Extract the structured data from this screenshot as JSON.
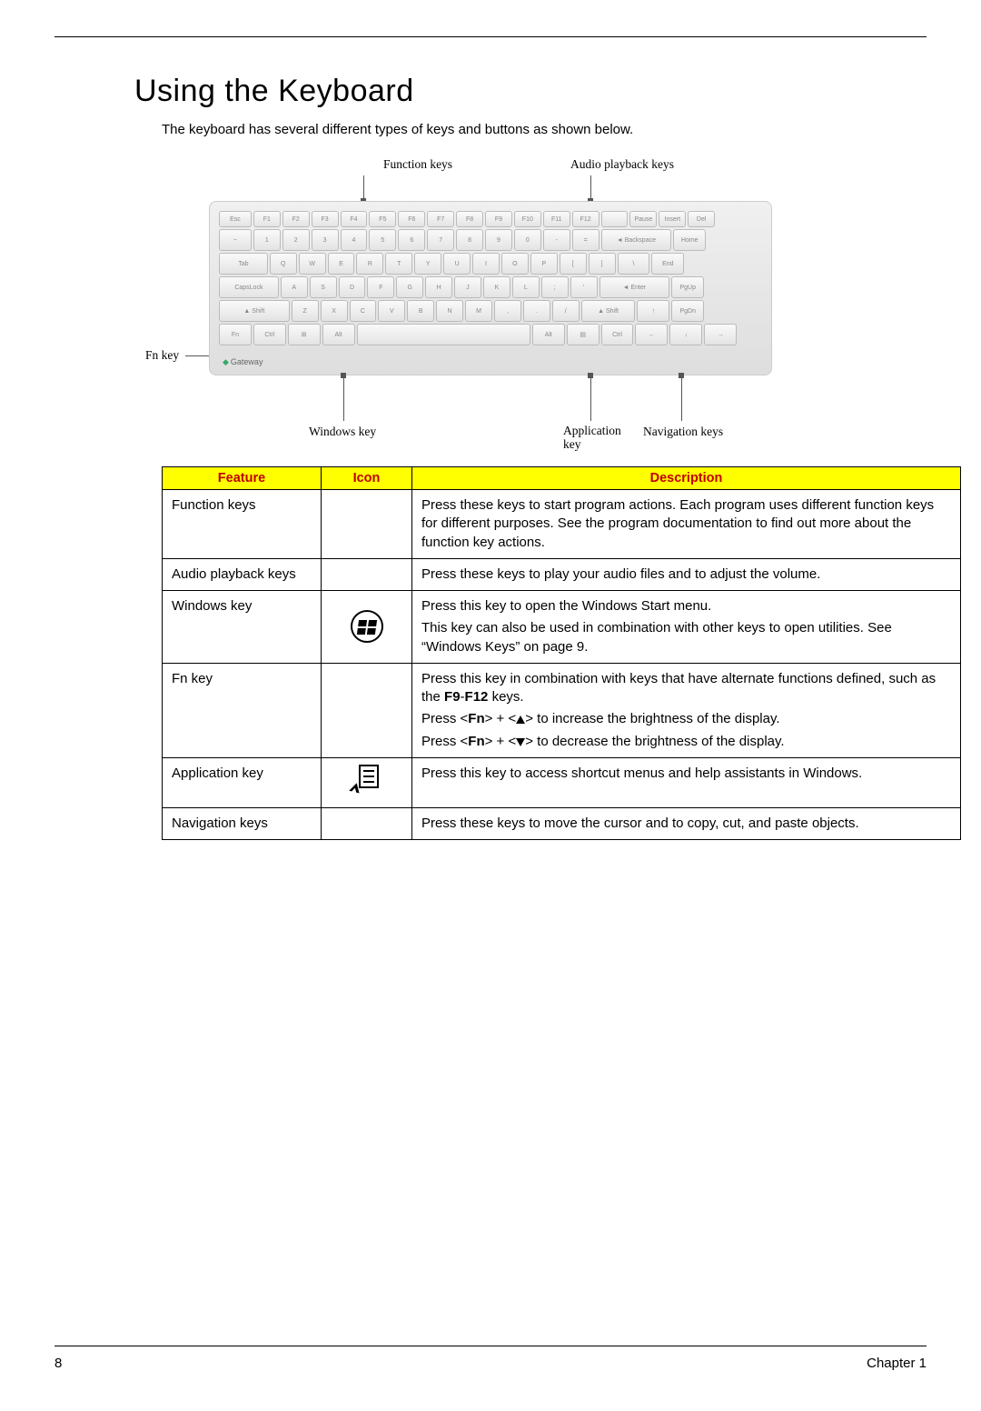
{
  "title": "Using the Keyboard",
  "intro": "The keyboard has several different types of keys and buttons as shown below.",
  "diagram": {
    "labels": {
      "function_keys": "Function keys",
      "audio_keys": "Audio playback keys",
      "fn_key": "Fn key",
      "windows_key": "Windows key",
      "application_key": "Application\nkey",
      "navigation_keys": "Navigation keys"
    },
    "brand": "Gateway",
    "rows": [
      [
        "Esc",
        "F1",
        "F2",
        "F3",
        "F4",
        "F5",
        "F6",
        "F7",
        "F8",
        "F9",
        "F10",
        "F11",
        "F12",
        "",
        "Pause",
        "Insert",
        "Del"
      ],
      [
        "~",
        "1",
        "2",
        "3",
        "4",
        "5",
        "6",
        "7",
        "8",
        "9",
        "0",
        "-",
        "=",
        "◄ Backspace",
        "Home"
      ],
      [
        "Tab",
        "Q",
        "W",
        "E",
        "R",
        "T",
        "Y",
        "U",
        "I",
        "O",
        "P",
        "[",
        "]",
        "\\",
        "End"
      ],
      [
        "CapsLock",
        "A",
        "S",
        "D",
        "F",
        "G",
        "H",
        "J",
        "K",
        "L",
        ";",
        "'",
        "◄ Enter",
        "PgUp"
      ],
      [
        "▲ Shift",
        "Z",
        "X",
        "C",
        "V",
        "B",
        "N",
        "M",
        ",",
        ".",
        "/",
        "▲ Shift",
        "↑",
        "PgDn"
      ],
      [
        "Fn",
        "Ctrl",
        "⊞",
        "Alt",
        " ",
        "Alt",
        "▤",
        "Ctrl",
        "←",
        "↓",
        "→"
      ]
    ],
    "widths_pct": [
      [
        6,
        5,
        5,
        5,
        5,
        5,
        5,
        5,
        5,
        5,
        5,
        5,
        5,
        5,
        5,
        5,
        5
      ],
      [
        6,
        5,
        5,
        5,
        5,
        5,
        5,
        5,
        5,
        5,
        5,
        5,
        5,
        13,
        6
      ],
      [
        9,
        5,
        5,
        5,
        5,
        5,
        5,
        5,
        5,
        5,
        5,
        5,
        5,
        6,
        6
      ],
      [
        11,
        5,
        5,
        5,
        5,
        5,
        5,
        5,
        5,
        5,
        5,
        5,
        13,
        6
      ],
      [
        13,
        5,
        5,
        5,
        5,
        5,
        5,
        5,
        5,
        5,
        5,
        10,
        6,
        6
      ],
      [
        6,
        6,
        6,
        6,
        32,
        6,
        6,
        6,
        6,
        6,
        6
      ]
    ]
  },
  "table": {
    "headers": [
      "Feature",
      "Icon",
      "Description"
    ],
    "rows": [
      {
        "feature": "Function keys",
        "icon": null,
        "desc_html": "Press these keys to start program actions. Each program uses different function keys for different purposes. See the program documentation to find out more about the function key actions."
      },
      {
        "feature": "Audio playback keys",
        "icon": null,
        "desc_html": "Press these keys to play your audio files and to adjust the volume."
      },
      {
        "feature": "Windows key",
        "icon": "windows",
        "desc_parts": [
          "Press this key to open the Windows Start menu.",
          "This key can also be used in combination with other keys to open utilities. See “Windows Keys” on page 9."
        ]
      },
      {
        "feature": "Fn key",
        "icon": null,
        "desc_fn": {
          "l1": "Press this key in combination with keys that have alternate functions defined, such as the ",
          "bold1": "F9",
          "dash": "-",
          "bold2": "F12",
          "l1end": " keys.",
          "l2a": "Press <",
          "fn": "Fn",
          "l2b": "> + <",
          "l2c": "> to increase the brightness of the display.",
          "l3c": "> to decrease the brightness of the display."
        }
      },
      {
        "feature": "Application key",
        "icon": "app",
        "desc_html": "Press this key to access shortcut menus and help assistants in Windows."
      },
      {
        "feature": "Navigation keys",
        "icon": null,
        "desc_html": "Press these keys to move the cursor and to copy, cut, and paste objects."
      }
    ]
  },
  "footer": {
    "page_number": "8",
    "chapter": "Chapter 1"
  },
  "colors": {
    "header_bg": "#ffff00",
    "header_fg": "#c00000",
    "border": "#000000"
  }
}
